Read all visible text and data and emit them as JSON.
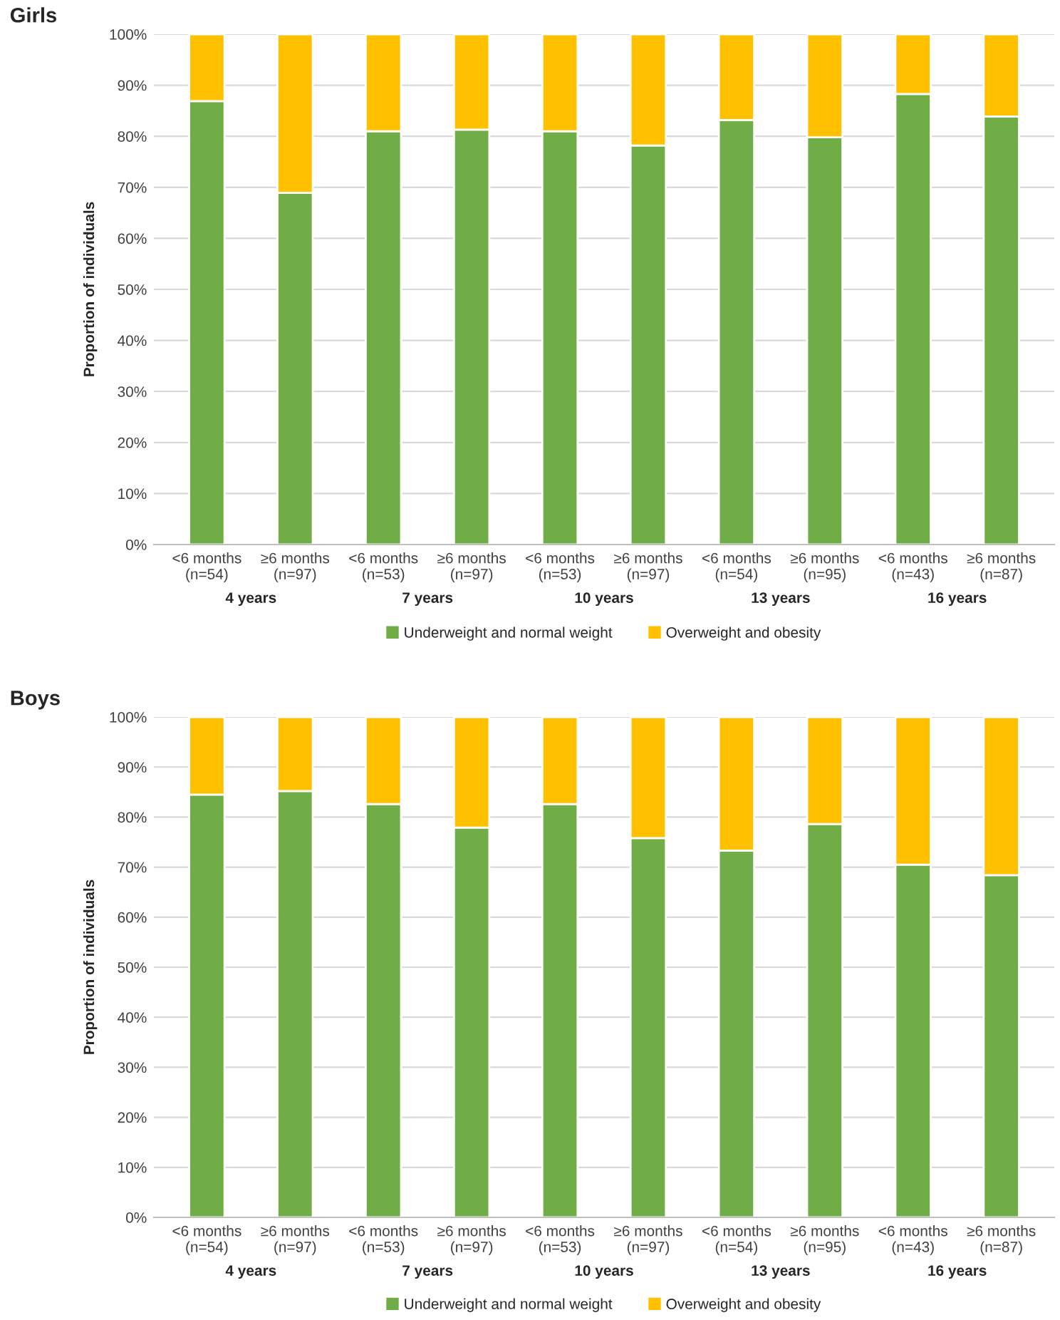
{
  "chart_data": [
    {
      "type": "bar",
      "title": "Girls",
      "ylabel": "Proportion of individuals",
      "stacked": true,
      "grid": "y",
      "legend": "bottom",
      "categories": [
        "<6 months\n(n=54)",
        "≥6 months\n(n=97)",
        "<6 months\n(n=53)",
        "≥6 months\n(n=97)",
        "<6 months\n(n=53)",
        "≥6 months\n(n=97)",
        "<6 months\n(n=54)",
        "≥6 months\n(n=95)",
        "<6 months\n(n=43)",
        "≥6 months\n(n=87)"
      ],
      "series": [
        {
          "name": "Underweight and normal weight",
          "color": "#70ad47",
          "values": [
            86.9,
            68.9,
            81.0,
            81.3,
            81.0,
            78.2,
            83.2,
            79.8,
            88.3,
            83.9
          ]
        },
        {
          "name": "Overweight and obesity",
          "color": "#ffc000",
          "values": [
            13.1,
            31.1,
            19.0,
            18.7,
            19.0,
            21.8,
            16.8,
            20.2,
            11.7,
            16.1
          ]
        }
      ],
      "ylim": [
        0,
        100
      ],
      "yticks": [
        {
          "value": 0,
          "label": "0%"
        },
        {
          "value": 10,
          "label": "10%"
        },
        {
          "value": 20,
          "label": "20%"
        },
        {
          "value": 30,
          "label": "30%"
        },
        {
          "value": 40,
          "label": "40%"
        },
        {
          "value": 50,
          "label": "50%"
        },
        {
          "value": 60,
          "label": "60%"
        },
        {
          "value": 70,
          "label": "70%"
        },
        {
          "value": 80,
          "label": "80%"
        },
        {
          "value": 90,
          "label": "90%"
        },
        {
          "value": 100,
          "label": "100%"
        }
      ],
      "annotations": [
        "4 years",
        "7 years",
        "10 years",
        "13 years",
        "16 years"
      ]
    },
    {
      "type": "bar",
      "title": "Boys",
      "ylabel": "Proportion of individuals",
      "stacked": true,
      "grid": "y",
      "legend": "bottom",
      "categories": [
        "<6 months\n(n=54)",
        "≥6 months\n(n=97)",
        "<6 months\n(n=53)",
        "≥6 months\n(n=97)",
        "<6 months\n(n=53)",
        "≥6 months\n(n=97)",
        "<6 months\n(n=54)",
        "≥6 months\n(n=95)",
        "<6 months\n(n=43)",
        "≥6 months\n(n=87)"
      ],
      "series": [
        {
          "name": "Underweight and normal weight",
          "color": "#70ad47",
          "values": [
            84.5,
            85.2,
            82.6,
            77.9,
            82.6,
            75.8,
            73.3,
            78.6,
            70.5,
            68.4
          ]
        },
        {
          "name": "Overweight and obesity",
          "color": "#ffc000",
          "values": [
            15.5,
            14.8,
            17.4,
            22.1,
            17.4,
            24.2,
            26.7,
            21.4,
            29.5,
            31.6
          ]
        }
      ],
      "ylim": [
        0,
        100
      ],
      "yticks": [
        {
          "value": 0,
          "label": "0%"
        },
        {
          "value": 10,
          "label": "10%"
        },
        {
          "value": 20,
          "label": "20%"
        },
        {
          "value": 30,
          "label": "30%"
        },
        {
          "value": 40,
          "label": "40%"
        },
        {
          "value": 50,
          "label": "50%"
        },
        {
          "value": 60,
          "label": "60%"
        },
        {
          "value": 70,
          "label": "70%"
        },
        {
          "value": 80,
          "label": "80%"
        },
        {
          "value": 90,
          "label": "90%"
        },
        {
          "value": 100,
          "label": "100%"
        }
      ],
      "annotations": [
        "4 years",
        "7 years",
        "10 years",
        "13 years",
        "16 years"
      ]
    }
  ]
}
